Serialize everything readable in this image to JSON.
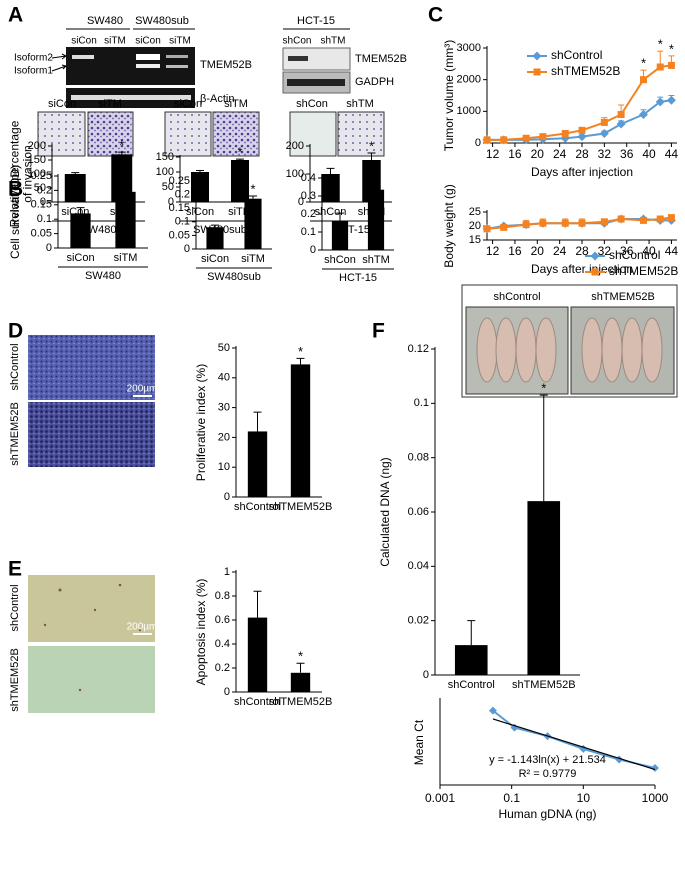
{
  "panel_labels": [
    "A",
    "B",
    "C",
    "D",
    "E",
    "F"
  ],
  "gel_sw480": {
    "cell_lines": [
      "SW480",
      "SW480sub"
    ],
    "lanes": [
      "siCon",
      "siTM",
      "siCon",
      "siTM"
    ],
    "isoforms": [
      "Isoform2",
      "Isoform1"
    ],
    "bands": [
      "TMEM52B",
      "β-Actin"
    ]
  },
  "gel_hct15": {
    "cell_line": "HCT-15",
    "lanes": [
      "shCon",
      "shTM"
    ],
    "bands": [
      "TMEM52B",
      "GADPH"
    ]
  },
  "invasion_images": {
    "labels": [
      "siCon",
      "siTM",
      "siCon",
      "siTM",
      "shCon",
      "shTM"
    ]
  },
  "mouse_photo": {
    "labels": [
      "shControl",
      "shTMEM52B"
    ]
  },
  "micrograph_d": {
    "labels": [
      "shControl",
      "shTMEM52B"
    ],
    "scale": "200µm"
  },
  "micrograph_e": {
    "labels": [
      "shControl",
      "shTMEM52B"
    ],
    "scale": "200µm"
  },
  "chart_data": [
    {
      "type": "bar",
      "ylabel": [
        "Relative percentage",
        "of invasion"
      ],
      "categories": [
        "siCon",
        "siTM"
      ],
      "values": [
        100,
        170
      ],
      "errors": [
        5,
        8
      ],
      "color": "#000000",
      "ylim": [
        0,
        200
      ],
      "yticks": [
        0,
        50,
        100,
        150,
        200
      ],
      "group": "SW480",
      "annotations": [
        {
          "category": "siTM",
          "text": "*"
        }
      ]
    },
    {
      "type": "bar",
      "categories": [
        "siCon",
        "siTM"
      ],
      "values": [
        100,
        140
      ],
      "errors": [
        5,
        3
      ],
      "color": "#000000",
      "ylim": [
        0,
        150
      ],
      "yticks": [
        0,
        50,
        100,
        150
      ],
      "group": "SW480sub",
      "annotations": [
        {
          "category": "siTM",
          "text": "*"
        }
      ]
    },
    {
      "type": "bar",
      "categories": [
        "shCon",
        "shTM"
      ],
      "values": [
        100,
        150
      ],
      "errors": [
        20,
        25
      ],
      "color": "#000000",
      "ylim": [
        0,
        200
      ],
      "yticks": [
        0,
        100,
        200
      ],
      "group": "HCT-15",
      "annotations": [
        {
          "category": "shTM",
          "text": "*"
        }
      ]
    },
    {
      "type": "bar",
      "ylabel": [
        "Cell survival (OD)"
      ],
      "categories": [
        "siCon",
        "siTM"
      ],
      "values": [
        0.12,
        0.195
      ],
      "errors": [
        0.02,
        0.018
      ],
      "color": "#000000",
      "ylim": [
        0,
        0.25
      ],
      "yticks": [
        0,
        0.05,
        0.1,
        0.15,
        0.2,
        0.25
      ],
      "group": "SW480",
      "annotations": [
        {
          "category": "siTM",
          "text": "*"
        }
      ]
    },
    {
      "type": "bar",
      "categories": [
        "siCon",
        "siTM"
      ],
      "values": [
        0.08,
        0.185
      ],
      "errors": [
        0.008,
        0.01
      ],
      "color": "#000000",
      "ylim": [
        0,
        0.25
      ],
      "yticks": [
        0,
        0.05,
        0.1,
        0.15,
        0.2,
        0.25
      ],
      "group": "SW480sub",
      "annotations": [
        {
          "category": "siTM",
          "text": "*"
        }
      ]
    },
    {
      "type": "bar",
      "categories": [
        "shCon",
        "shTM"
      ],
      "values": [
        0.16,
        0.335
      ],
      "errors": [
        0.045,
        0.015
      ],
      "color": "#000000",
      "ylim": [
        0,
        0.4
      ],
      "yticks": [
        0,
        0.1,
        0.2,
        0.3,
        0.4
      ],
      "group": "HCT-15",
      "annotations": [
        {
          "category": "shTM",
          "text": "*"
        }
      ]
    },
    {
      "type": "line",
      "ylabel": [
        "Tumor volume (mm³)"
      ],
      "xlabel": "Days after injection",
      "x": [
        11,
        14,
        18,
        21,
        25,
        28,
        32,
        35,
        39,
        42,
        44
      ],
      "xlim": [
        11,
        45
      ],
      "xticks": [
        12,
        16,
        20,
        24,
        28,
        32,
        36,
        40,
        44
      ],
      "ylim": [
        0,
        3000
      ],
      "yticks": [
        0,
        1000,
        2000,
        3000
      ],
      "legend": "upper left",
      "series": [
        {
          "name": "shControl",
          "color": "#5b9bd5",
          "marker": "diamond",
          "values": [
            100,
            100,
            100,
            120,
            150,
            200,
            300,
            600,
            900,
            1300,
            1350
          ],
          "errors": [
            20,
            20,
            20,
            30,
            40,
            50,
            80,
            100,
            150,
            150,
            150
          ]
        },
        {
          "name": "shTMEM52B",
          "color": "#f58220",
          "marker": "square",
          "values": [
            100,
            100,
            150,
            200,
            300,
            400,
            650,
            900,
            2000,
            2400,
            2450
          ],
          "errors": [
            20,
            20,
            30,
            40,
            60,
            80,
            150,
            300,
            300,
            500,
            300
          ]
        }
      ],
      "annotations": [
        {
          "x": 39,
          "text": "*"
        },
        {
          "x": 42,
          "text": "*"
        },
        {
          "x": 44,
          "text": "*"
        }
      ]
    },
    {
      "type": "line",
      "ylabel": [
        "Body weight (g)"
      ],
      "xlabel": "Days after injection",
      "x": [
        11,
        14,
        18,
        21,
        25,
        28,
        32,
        35,
        39,
        42,
        44
      ],
      "xlim": [
        11,
        45
      ],
      "xticks": [
        12,
        16,
        20,
        24,
        28,
        32,
        36,
        40,
        44
      ],
      "ylim": [
        15,
        25
      ],
      "yticks": [
        15,
        20,
        25
      ],
      "legend": "lower right",
      "series": [
        {
          "name": "shControl",
          "color": "#5b9bd5",
          "marker": "diamond",
          "values": [
            19,
            20,
            20.5,
            21,
            21,
            21,
            21,
            22.5,
            22.5,
            22,
            22
          ]
        },
        {
          "name": "shTMEM52B",
          "color": "#f58220",
          "marker": "square",
          "values": [
            19,
            19.5,
            20.5,
            21,
            21,
            21,
            21.5,
            22.5,
            22,
            22.5,
            23
          ],
          "errors": [
            0.5,
            1,
            1.5,
            1.5,
            1.5,
            1.5,
            1,
            0.5,
            1,
            1,
            0.5
          ]
        }
      ]
    },
    {
      "type": "bar",
      "ylabel": [
        "Proliferative index (%)"
      ],
      "categories": [
        "shControl",
        "shTMEM52B"
      ],
      "values": [
        22,
        44.5
      ],
      "errors": [
        6.5,
        2
      ],
      "color": "#000000",
      "ylim": [
        0,
        50
      ],
      "yticks": [
        0,
        10,
        20,
        30,
        40,
        50
      ],
      "annotations": [
        {
          "category": "shTMEM52B",
          "text": "*"
        }
      ]
    },
    {
      "type": "bar",
      "ylabel": [
        "Apoptosis index (%)"
      ],
      "categories": [
        "shControl",
        "shTMEM52B"
      ],
      "values": [
        0.62,
        0.16
      ],
      "errors": [
        0.22,
        0.08
      ],
      "color": "#000000",
      "ylim": [
        0,
        1
      ],
      "yticks": [
        0,
        0.2,
        0.4,
        0.6,
        0.8,
        1
      ],
      "annotations": [
        {
          "category": "shTMEM52B",
          "text": "*"
        }
      ]
    },
    {
      "type": "bar",
      "ylabel": [
        "Calculated DNA (ng)"
      ],
      "categories": [
        "shControl",
        "shTMEM52B"
      ],
      "values": [
        0.011,
        0.064
      ],
      "errors": [
        0.009,
        0.039
      ],
      "color": "#000000",
      "ylim": [
        0,
        0.12
      ],
      "yticks": [
        0,
        0.02,
        0.04,
        0.06,
        0.08,
        0.1,
        0.12
      ],
      "annotations": [
        {
          "category": "shTMEM52B",
          "text": "*"
        }
      ]
    },
    {
      "type": "scatter",
      "ylabel": [
        "Mean Ct"
      ],
      "xlabel": "Human gDNA (ng)",
      "xscale": "log",
      "x": [
        0.03,
        0.12,
        1,
        10,
        100,
        1000
      ],
      "values": [
        27.5,
        23.5,
        21.5,
        18.5,
        16,
        14
      ],
      "color": "#5b9bd5",
      "xlim": [
        0.001,
        1000
      ],
      "xticks": [
        0.001,
        0.1,
        10,
        1000
      ],
      "ylim": [
        10,
        30
      ],
      "trendline": {
        "label": "y = -1.143ln(x) + 21.534",
        "r2_label": "R² = 0.9779",
        "slope": -1.143,
        "intercept": 21.534,
        "color": "#000000"
      }
    }
  ]
}
